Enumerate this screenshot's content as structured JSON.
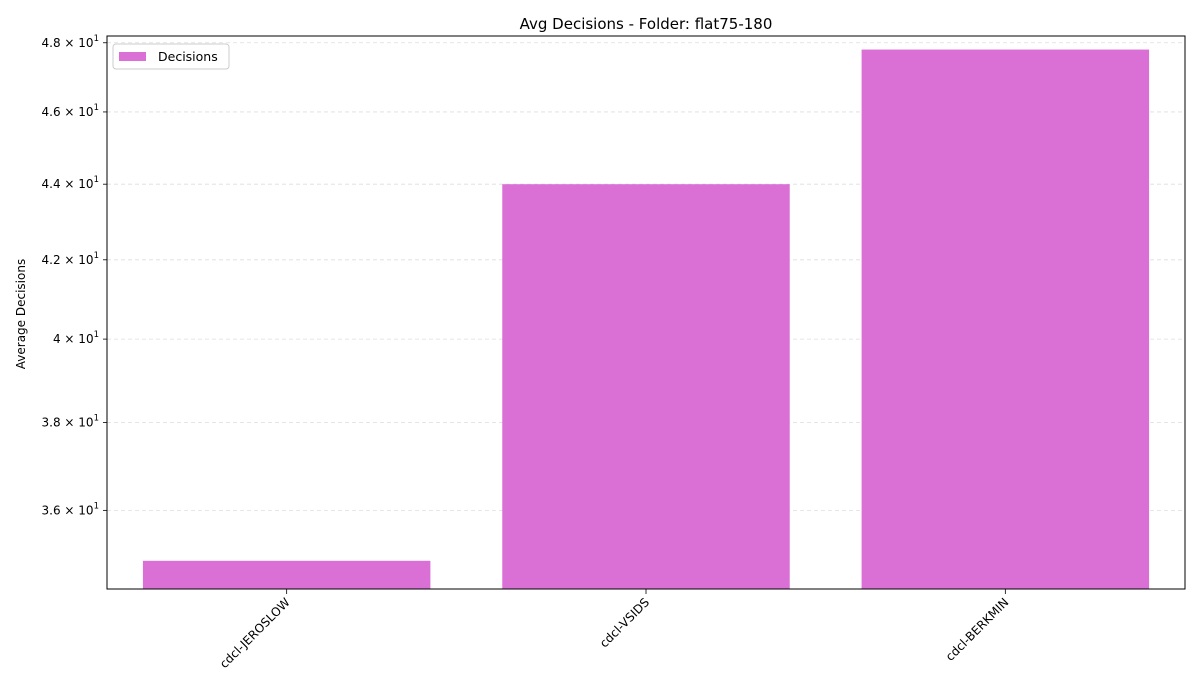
{
  "chart_data": {
    "type": "bar",
    "title": "Avg Decisions - Folder: flat75-180",
    "xlabel": "",
    "ylabel": "Average Decisions",
    "yscale": "log",
    "ylim": [
      34.3,
      48.2
    ],
    "yticks": [
      {
        "value": 36,
        "base": "3.6",
        "exp": "1"
      },
      {
        "value": 38,
        "base": "3.8",
        "exp": "1"
      },
      {
        "value": 40,
        "base": "4",
        "exp": "1"
      },
      {
        "value": 42,
        "base": "4.2",
        "exp": "1"
      },
      {
        "value": 44,
        "base": "4.4",
        "exp": "1"
      },
      {
        "value": 46,
        "base": "4.6",
        "exp": "1"
      },
      {
        "value": 48,
        "base": "4.8",
        "exp": "1"
      }
    ],
    "tick_times": "×",
    "tick_ten": "10",
    "categories": [
      "cdcl-JEROSLOW",
      "cdcl-VSIDS",
      "cdcl-BERKMIN"
    ],
    "series": [
      {
        "name": "Decisions",
        "values": [
          34.9,
          44.0,
          47.8
        ],
        "color": "#da70d6"
      }
    ],
    "grid": true,
    "legend_position": "top-left"
  }
}
